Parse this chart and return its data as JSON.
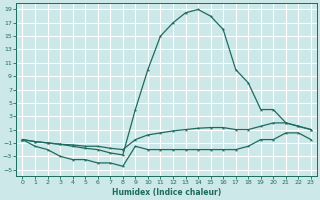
{
  "xlabel": "Humidex (Indice chaleur)",
  "background_color": "#cce8e8",
  "grid_color": "#ffffff",
  "line_color": "#1e6b5e",
  "xlim": [
    -0.5,
    23.5
  ],
  "ylim": [
    -6,
    20
  ],
  "xticks": [
    0,
    1,
    2,
    3,
    4,
    5,
    6,
    7,
    8,
    9,
    10,
    11,
    12,
    13,
    14,
    15,
    16,
    17,
    18,
    19,
    20,
    21,
    22,
    23
  ],
  "yticks": [
    -5,
    -3,
    -1,
    1,
    3,
    5,
    7,
    9,
    11,
    13,
    15,
    17,
    19
  ],
  "line_top_x": [
    0,
    1,
    2,
    3,
    4,
    5,
    6,
    7,
    8,
    9,
    10,
    11,
    12,
    13,
    14,
    15,
    16,
    17,
    18,
    19,
    20,
    21,
    22,
    23
  ],
  "line_top_y": [
    -0.5,
    -0.8,
    -1.0,
    -1.2,
    -1.5,
    -1.8,
    -2.0,
    -2.5,
    -2.8,
    4.0,
    10.0,
    15.0,
    17.0,
    18.5,
    19.0,
    18.0,
    16.0,
    10.0,
    8.0,
    4.0,
    4.0,
    2.0,
    1.5,
    1.0
  ],
  "line_mid_x": [
    0,
    1,
    2,
    3,
    4,
    5,
    6,
    7,
    8,
    9,
    10,
    11,
    12,
    13,
    14,
    15,
    16,
    17,
    18,
    19,
    20,
    21,
    22,
    23
  ],
  "line_mid_y": [
    -0.5,
    -0.8,
    -1.0,
    -1.2,
    -1.3,
    -1.5,
    -1.5,
    -1.8,
    -2.0,
    -0.5,
    0.2,
    0.5,
    0.8,
    1.0,
    1.2,
    1.3,
    1.3,
    1.0,
    1.0,
    1.5,
    2.0,
    2.0,
    1.5,
    1.0
  ],
  "line_bot_x": [
    0,
    1,
    2,
    3,
    4,
    5,
    6,
    7,
    8,
    9,
    10,
    11,
    12,
    13,
    14,
    15,
    16,
    17,
    18,
    19,
    20,
    21,
    22,
    23
  ],
  "line_bot_y": [
    -0.5,
    -1.5,
    -2.0,
    -3.0,
    -3.5,
    -3.5,
    -4.0,
    -4.0,
    -4.5,
    -1.5,
    -2.0,
    -2.0,
    -2.0,
    -2.0,
    -2.0,
    -2.0,
    -2.0,
    -2.0,
    -1.5,
    -0.5,
    -0.5,
    0.5,
    0.5,
    -0.5
  ]
}
